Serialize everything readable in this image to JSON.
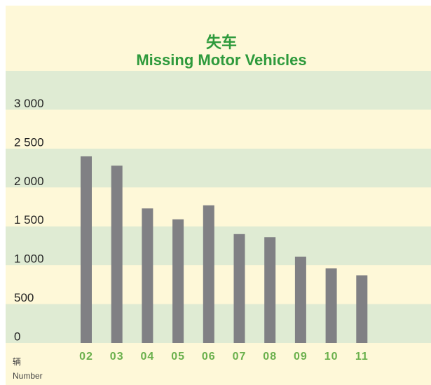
{
  "chart_data": {
    "type": "bar",
    "title": "失车",
    "subtitle": "Missing Motor Vehicles",
    "y_unit_label": "辆",
    "y_axis_label": "Number",
    "categories": [
      "02",
      "03",
      "04",
      "05",
      "06",
      "07",
      "08",
      "09",
      "10",
      "11"
    ],
    "values": [
      2400,
      2280,
      1730,
      1590,
      1770,
      1400,
      1360,
      1110,
      960,
      870
    ],
    "color": "#808084",
    "ylim": [
      0,
      3500
    ],
    "yticks": [
      0,
      500,
      {
        "value": 1000,
        "label": "1 000"
      },
      {
        "value": 1500,
        "label": "1 500"
      },
      {
        "value": 2000,
        "label": "2 000"
      },
      {
        "value": 2500,
        "label": "2 500"
      },
      {
        "value": 3000,
        "label": "3 000"
      }
    ],
    "grid": true
  }
}
